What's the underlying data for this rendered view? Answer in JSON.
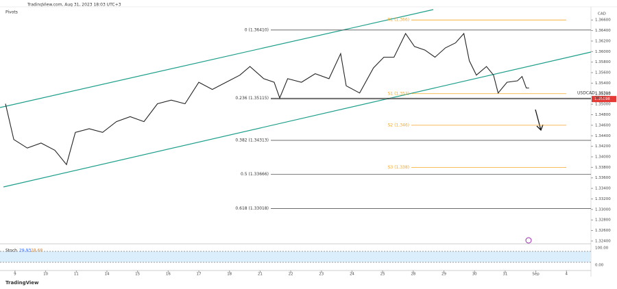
{
  "header": {
    "source": "TradingView.com, Aug 31, 2023 18:03 UTC+3",
    "indicator": "Pivots",
    "currency": "CAD"
  },
  "chart_data": {
    "type": "line",
    "series": [
      {
        "name": "USDCAD",
        "color": "#222222",
        "x": [
          -0.31,
          -0.04,
          0.4,
          0.85,
          1.3,
          1.68,
          1.97,
          2.42,
          2.86,
          3.31,
          3.76,
          4.21,
          4.65,
          5.1,
          5.55,
          6.0,
          6.44,
          6.89,
          7.34,
          7.67,
          8.12,
          8.46,
          8.64,
          8.9,
          9.35,
          9.8,
          10.25,
          10.63,
          10.81,
          11.25,
          11.7,
          12.04,
          12.37,
          12.75,
          13.04,
          13.38,
          13.71,
          14.05,
          14.38,
          14.65,
          14.83,
          15.06,
          15.39,
          15.62,
          15.77,
          16.06,
          16.4,
          16.55,
          16.69,
          16.78
        ],
        "values": [
          1.35009,
          1.34329,
          1.34166,
          1.34261,
          1.34125,
          1.33853,
          1.34465,
          1.34533,
          1.34465,
          1.34669,
          1.34764,
          1.34669,
          1.35009,
          1.35077,
          1.35009,
          1.35417,
          1.35281,
          1.35417,
          1.35553,
          1.35716,
          1.35485,
          1.35417,
          1.35118,
          1.35485,
          1.35417,
          1.3558,
          1.35485,
          1.35961,
          1.35349,
          1.35213,
          1.35689,
          1.35893,
          1.35893,
          1.36342,
          1.36097,
          1.36029,
          1.35893,
          1.3607,
          1.36165,
          1.36342,
          1.35825,
          1.35553,
          1.35716,
          1.35553,
          1.35213,
          1.35417,
          1.35444,
          1.35526,
          1.35308,
          1.35308
        ]
      }
    ],
    "xlim": [
      -0.49,
      18.8
    ],
    "xticks": [
      {
        "value": 0,
        "label": "9"
      },
      {
        "value": 1,
        "label": "10"
      },
      {
        "value": 2,
        "label": "11"
      },
      {
        "value": 3,
        "label": "14"
      },
      {
        "value": 4,
        "label": "15"
      },
      {
        "value": 5,
        "label": "16"
      },
      {
        "value": 6,
        "label": "17"
      },
      {
        "value": 7,
        "label": "18"
      },
      {
        "value": 8,
        "label": "21"
      },
      {
        "value": 9,
        "label": "22"
      },
      {
        "value": 10,
        "label": "23"
      },
      {
        "value": 11,
        "label": "24"
      },
      {
        "value": 12,
        "label": "25"
      },
      {
        "value": 13,
        "label": "28"
      },
      {
        "value": 14,
        "label": "29"
      },
      {
        "value": 15,
        "label": "30"
      },
      {
        "value": 16,
        "label": "31"
      },
      {
        "value": 17,
        "label": "Sep"
      },
      {
        "value": 18,
        "label": "4"
      }
    ],
    "ylim": [
      1.3236,
      1.3685
    ],
    "yticks": [
      {
        "value": 1.366,
        "label": "1.36600"
      },
      {
        "value": 1.364,
        "label": "1.36400"
      },
      {
        "value": 1.362,
        "label": "1.36200"
      },
      {
        "value": 1.36,
        "label": "1.36000"
      },
      {
        "value": 1.358,
        "label": "1.35800"
      },
      {
        "value": 1.356,
        "label": "1.35600"
      },
      {
        "value": 1.354,
        "label": "1.35400"
      },
      {
        "value": 1.352,
        "label": "1.35200"
      },
      {
        "value": 1.35,
        "label": "1.35000"
      },
      {
        "value": 1.348,
        "label": "1.34800"
      },
      {
        "value": 1.346,
        "label": "1.34600"
      },
      {
        "value": 1.344,
        "label": "1.34400"
      },
      {
        "value": 1.342,
        "label": "1.34200"
      },
      {
        "value": 1.34,
        "label": "1.34000"
      },
      {
        "value": 1.338,
        "label": "1.33800"
      },
      {
        "value": 1.336,
        "label": "1.33600"
      },
      {
        "value": 1.334,
        "label": "1.33400"
      },
      {
        "value": 1.332,
        "label": "1.33200"
      },
      {
        "value": 1.33,
        "label": "1.33000"
      },
      {
        "value": 1.328,
        "label": "1.32800"
      },
      {
        "value": 1.326,
        "label": "1.32600"
      },
      {
        "value": 1.324,
        "label": "1.32400"
      }
    ],
    "fib_levels": [
      {
        "value": 1.3641,
        "label": "0 (1.36410)"
      },
      {
        "value": 1.35115,
        "label": "0.236 (1.35115)"
      },
      {
        "value": 1.34313,
        "label": "0.382 (1.34313)"
      },
      {
        "value": 1.33666,
        "label": "0.5 (1.33666)"
      },
      {
        "value": 1.33018,
        "label": "0.618 (1.33018)"
      }
    ],
    "fib_color": "#555555",
    "pivot_levels": [
      {
        "value": 1.366,
        "label": "R1 (1.366)"
      },
      {
        "value": 1.352,
        "label": "S1 (1.352)"
      },
      {
        "value": 1.346,
        "label": "S2 (1.346)"
      },
      {
        "value": 1.338,
        "label": "S3 (1.338)"
      }
    ],
    "pivot_color": "#f5a623",
    "last_price": {
      "value": 1.35098,
      "label": "1.35098"
    },
    "price_label": "1.35319",
    "countdown": "56:31",
    "stoch": {
      "title": "Stoch",
      "k": "29.93",
      "d": "28.68",
      "upper": "100.00",
      "lower": "0.00"
    }
  },
  "footer": "TradingView"
}
